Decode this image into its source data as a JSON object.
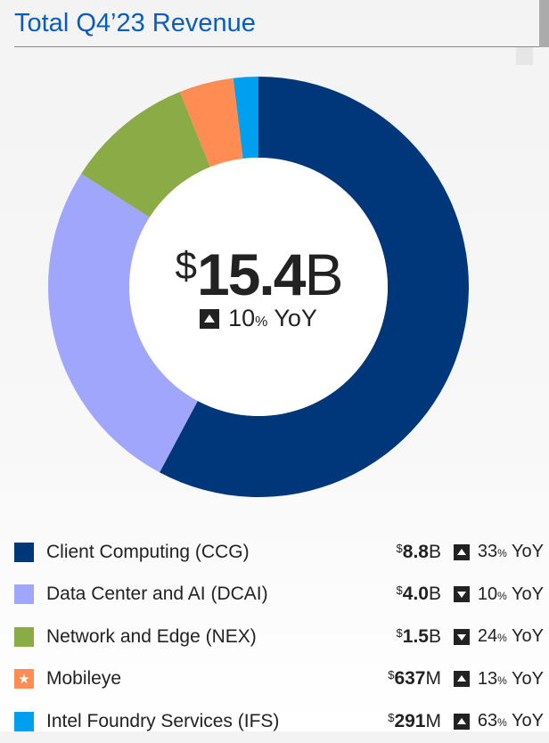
{
  "header": {
    "title": "Total Q4’23 Revenue"
  },
  "center": {
    "currency": "$",
    "value": "15.4",
    "unit": "B",
    "direction": "up",
    "change": "10",
    "pct": "%",
    "yoy": "YoY"
  },
  "chart_data": {
    "type": "pie",
    "title": "Total Q4’23 Revenue",
    "subtype": "donut",
    "start": "top, clockwise",
    "categories": [
      "Client Computing (CCG)",
      "Data Center and AI (DCAI)",
      "Network and Edge (NEX)",
      "Mobileye",
      "Intel Foundry Services (IFS)"
    ],
    "values": [
      8.8,
      4.0,
      1.5,
      0.637,
      0.291
    ],
    "units": "$B",
    "colors": [
      "#00377a",
      "#a0a6fc",
      "#8aab46",
      "#ff8c52",
      "#009ff0"
    ]
  },
  "legend": [
    {
      "label": "Client Computing (CCG)",
      "currency": "$",
      "amount": "8.8",
      "unit": "B",
      "direction": "up",
      "change": "33",
      "icon": "square"
    },
    {
      "label": "Data Center and AI (DCAI)",
      "currency": "$",
      "amount": "4.0",
      "unit": "B",
      "direction": "down",
      "change": "10",
      "icon": "square"
    },
    {
      "label": "Network and Edge (NEX)",
      "currency": "$",
      "amount": "1.5",
      "unit": "B",
      "direction": "down",
      "change": "24",
      "icon": "square"
    },
    {
      "label": "Mobileye",
      "currency": "$",
      "amount": "637",
      "unit": "M",
      "direction": "up",
      "change": "13",
      "icon": "star"
    },
    {
      "label": "Intel Foundry Services (IFS)",
      "currency": "$",
      "amount": "291",
      "unit": "M",
      "direction": "up",
      "change": "63",
      "icon": "square"
    }
  ],
  "pct": "%",
  "yoy": "YoY"
}
